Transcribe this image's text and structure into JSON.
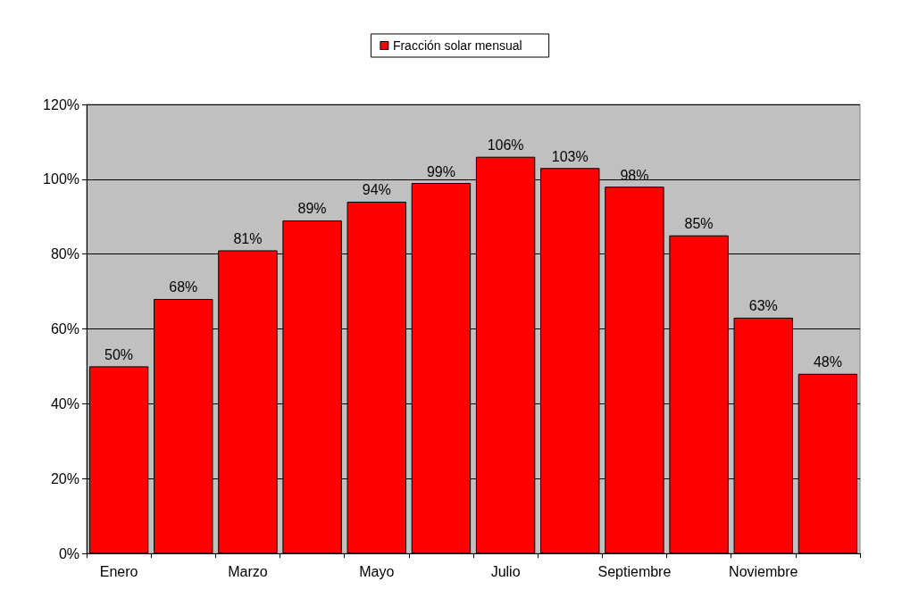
{
  "chart_data": {
    "type": "bar",
    "categories": [
      "Enero",
      null,
      "Marzo",
      null,
      "Mayo",
      null,
      "Julio",
      null,
      "Septiembre",
      null,
      "Noviembre",
      null
    ],
    "series": [
      {
        "name": "Fracción solar mensual",
        "color": "#ff0000",
        "values": [
          50,
          68,
          81,
          89,
          94,
          99,
          106,
          103,
          98,
          85,
          63,
          48
        ],
        "value_labels": [
          "50%",
          "68%",
          "81%",
          "89%",
          "94%",
          "99%",
          "106%",
          "103%",
          "98%",
          "85%",
          "63%",
          "48%"
        ]
      }
    ],
    "ylim": [
      0,
      120
    ],
    "yticks": [
      {
        "value": 0,
        "label": "0%"
      },
      {
        "value": 20,
        "label": "20%"
      },
      {
        "value": 40,
        "label": "40%"
      },
      {
        "value": 60,
        "label": "60%"
      },
      {
        "value": 80,
        "label": "80%"
      },
      {
        "value": 100,
        "label": "100%"
      },
      {
        "value": 120,
        "label": "120%"
      }
    ],
    "grid": "y",
    "legend": "top"
  }
}
